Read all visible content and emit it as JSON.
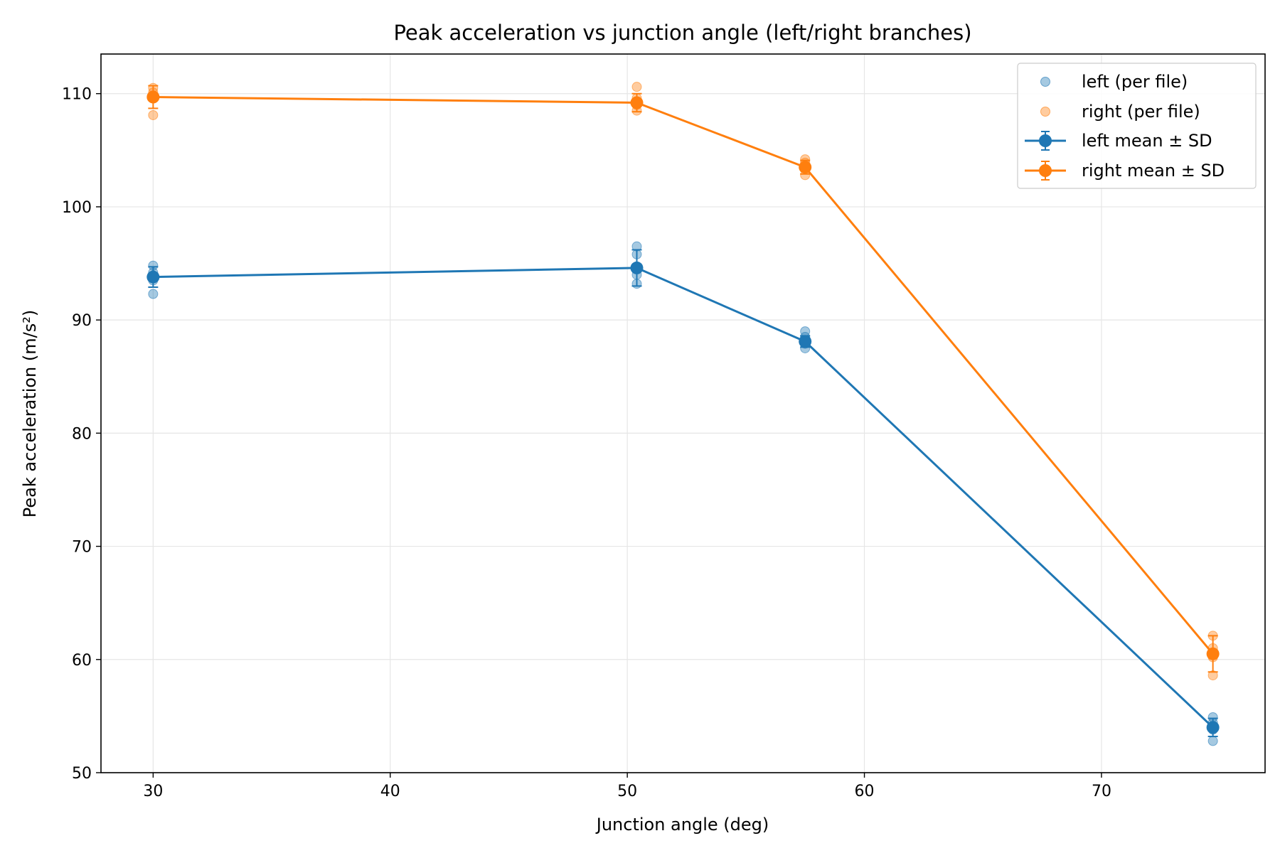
{
  "chart_data": {
    "type": "line",
    "title": "Peak acceleration vs junction angle (left/right branches)",
    "xlabel": "Junction angle (deg)",
    "ylabel": "Peak acceleration (m/s²)",
    "xlim": [
      27.8,
      76.9
    ],
    "ylim": [
      50,
      113.5
    ],
    "xticks": [
      30,
      40,
      50,
      60,
      70
    ],
    "yticks": [
      50,
      60,
      70,
      80,
      90,
      100,
      110
    ],
    "grid": true,
    "legend_position": "top-right",
    "legend_entries": [
      "left (per file)",
      "right (per file)",
      "left mean ± SD",
      "right mean ± SD"
    ],
    "series": [
      {
        "name": "left mean ± SD",
        "color": "#1f77b4",
        "x": [
          30.0,
          50.4,
          57.5,
          74.7
        ],
        "y": [
          93.8,
          94.6,
          88.1,
          54.0
        ],
        "sd": [
          0.9,
          1.6,
          0.5,
          0.8
        ]
      },
      {
        "name": "right mean ± SD",
        "color": "#ff7f0e",
        "x": [
          30.0,
          50.4,
          57.5,
          74.7
        ],
        "y": [
          109.7,
          109.2,
          103.5,
          60.5
        ],
        "sd": [
          1.0,
          0.8,
          0.6,
          1.6
        ]
      }
    ],
    "scatter": [
      {
        "name": "left (per file)",
        "color": "#1f77b4",
        "points": [
          [
            30.0,
            92.3
          ],
          [
            30.0,
            93.5
          ],
          [
            30.0,
            94.2
          ],
          [
            30.0,
            94.8
          ],
          [
            50.4,
            93.2
          ],
          [
            50.4,
            94.0
          ],
          [
            50.4,
            95.8
          ],
          [
            50.4,
            96.5
          ],
          [
            57.5,
            87.5
          ],
          [
            57.5,
            87.9
          ],
          [
            57.5,
            88.5
          ],
          [
            57.5,
            89.0
          ],
          [
            74.7,
            52.8
          ],
          [
            74.7,
            53.8
          ],
          [
            74.7,
            54.4
          ],
          [
            74.7,
            54.9
          ]
        ]
      },
      {
        "name": "right (per file)",
        "color": "#ff7f0e",
        "points": [
          [
            30.0,
            108.1
          ],
          [
            30.0,
            109.8
          ],
          [
            30.0,
            110.1
          ],
          [
            30.0,
            110.5
          ],
          [
            50.4,
            108.5
          ],
          [
            50.4,
            109.0
          ],
          [
            50.4,
            109.6
          ],
          [
            50.4,
            110.6
          ],
          [
            57.5,
            102.8
          ],
          [
            57.5,
            103.4
          ],
          [
            57.5,
            103.9
          ],
          [
            57.5,
            104.2
          ],
          [
            74.7,
            58.6
          ],
          [
            74.7,
            60.2
          ],
          [
            74.7,
            61.0
          ],
          [
            74.7,
            62.1
          ]
        ]
      }
    ]
  }
}
